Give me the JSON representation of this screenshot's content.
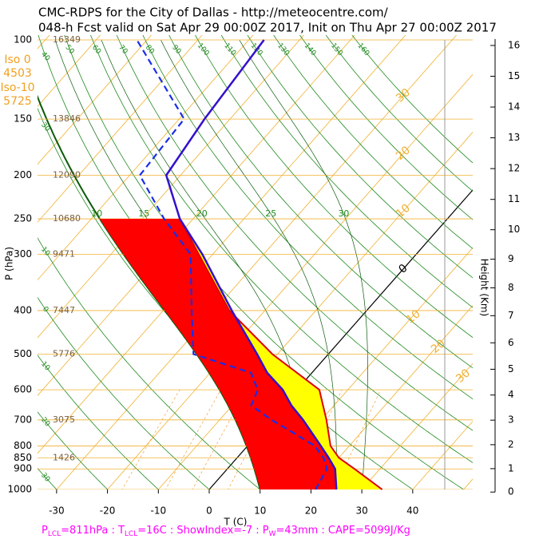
{
  "chart_data": {
    "type": "skewt",
    "title": "CMC-RDPS for the City of Dallas - http://meteocentre.com/",
    "subtitle": "048-h Fcst valid on Sat Apr 29 00:00Z 2017, Init on Thu Apr 27 00:00Z 2017",
    "y_label": "P (hPa)",
    "x_label": "T (C)",
    "ylim": [
      1000,
      100
    ],
    "yticks": [
      100,
      150,
      200,
      250,
      300,
      400,
      500,
      600,
      700,
      800,
      850,
      900,
      1000
    ],
    "xlim": [
      -33.75,
      51.8
    ],
    "xticks": [
      -30,
      -20,
      -10,
      0,
      10,
      20,
      30,
      40
    ],
    "freezing_levels": [
      {
        "name": "Iso 0",
        "value": 4503
      },
      {
        "name": "Iso-10",
        "value": 5725
      }
    ],
    "geopotential": {
      "pressure": [
        100,
        150,
        200,
        250,
        300,
        400,
        500,
        700,
        850
      ],
      "values": [
        16349,
        13846,
        12090,
        10680,
        9471,
        7447,
        5776,
        3075,
        1426
      ]
    },
    "height_axis": {
      "label": "Height (Km)",
      "ticks": [
        0,
        1,
        2,
        3,
        4,
        5,
        6,
        7,
        8,
        9,
        10,
        11,
        12,
        13,
        14,
        15,
        16
      ]
    },
    "isotherm_labels": [
      {
        "value": -30,
        "label": "30"
      },
      {
        "value": -20,
        "label": "20"
      },
      {
        "value": -10,
        "label": "10"
      },
      0,
      10,
      20,
      30
    ],
    "dry_adiabat_labels": [
      {
        "value": -30,
        "label": "30"
      },
      {
        "value": -20,
        "label": "20"
      },
      {
        "value": -10,
        "label": "10"
      },
      0,
      10,
      30,
      40,
      50,
      60,
      70,
      80,
      90,
      100,
      110,
      120,
      130,
      140,
      150,
      160
    ],
    "moist_adiabat_labels": [
      10,
      15,
      20,
      25,
      30
    ],
    "temperature": {
      "color": "#3311cc",
      "pressure": [
        1000,
        900,
        850,
        800,
        700,
        650,
        600,
        550,
        500,
        400,
        300,
        250,
        200,
        150,
        100
      ],
      "values": [
        25,
        21.2,
        18,
        14.4,
        6.4,
        1.6,
        -2.8,
        -8.8,
        -14,
        -26.5,
        -42,
        -52.6,
        -62.8,
        -65,
        -67
      ]
    },
    "dewpoint": {
      "color": "#1a2ee8",
      "pressure": [
        1000,
        900,
        850,
        800,
        750,
        700,
        650,
        600,
        550,
        500,
        400,
        300,
        250,
        200,
        150,
        100
      ],
      "values": [
        20.9,
        19.6,
        17,
        13.2,
        7,
        0.2,
        -6.3,
        -7.7,
        -12,
        -26.5,
        -34.4,
        -44.3,
        -55.7,
        -68,
        -69,
        -92
      ]
    },
    "parcel": {
      "color": "#dd0000",
      "pressure": [
        1000,
        900,
        850,
        800,
        700,
        600,
        500,
        400,
        300,
        250
      ],
      "values": [
        34,
        25,
        20,
        16.3,
        11,
        4.4,
        -11,
        -27,
        -42.7,
        -52.6
      ]
    },
    "footer": [
      "P",
      "LCL",
      "=811hPa : T",
      "LCL",
      "=16C : ShowIndex=-7 : P",
      "W",
      "=43mm : CAPE=5099J/Kg"
    ]
  }
}
